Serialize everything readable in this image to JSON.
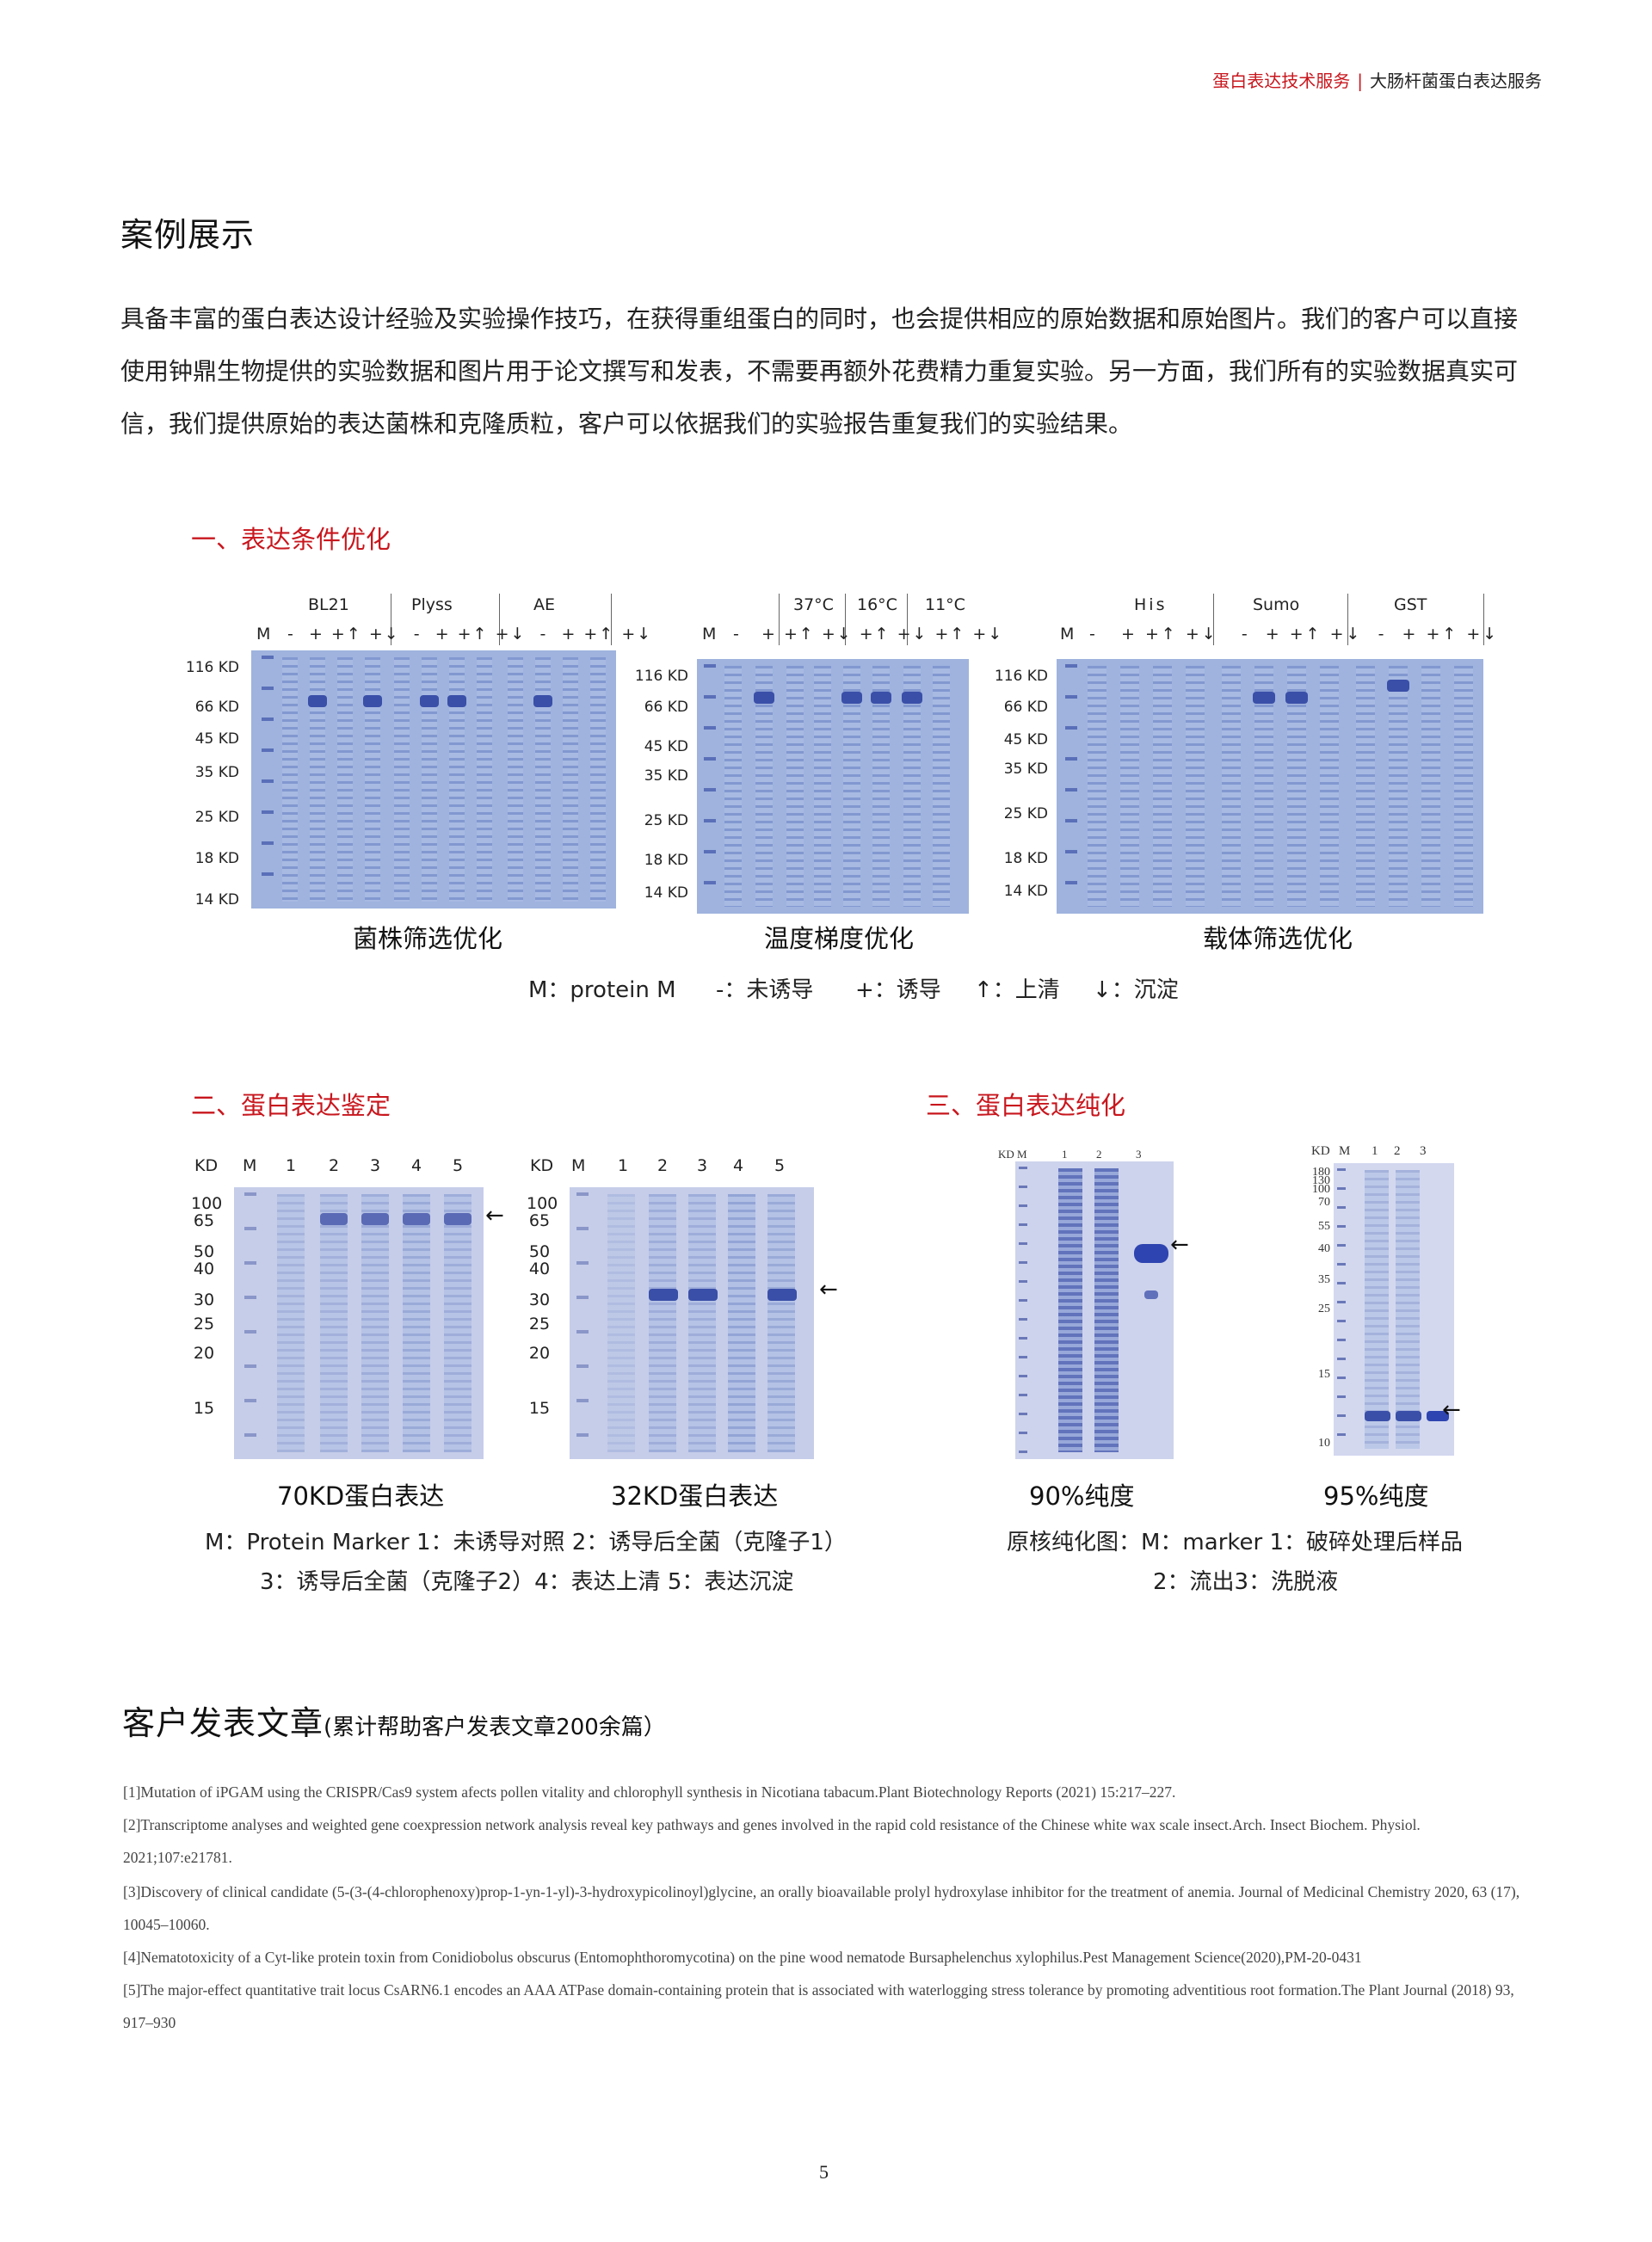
{
  "header": {
    "left": "蛋白表达技术服务",
    "separator": "|",
    "right": "大肠杆菌蛋白表达服务"
  },
  "cases": {
    "title": "案例展示",
    "intro": "具备丰富的蛋白表达设计经验及实验操作技巧，在获得重组蛋白的同时，也会提供相应的原始数据和原始图片。我们的客户可以直接使用钟鼎生物提供的实验数据和图片用于论文撰写和发表，不需要再额外花费精力重复实验。另一方面，我们所有的实验数据真实可信，我们提供原始的表达菌株和克隆质粒，客户可以依据我们的实验报告重复我们的实验结果。"
  },
  "section1": {
    "title": "一、表达条件优化",
    "gel1": {
      "groups": [
        "BL21",
        "Plyss",
        "AE"
      ],
      "marker": "M",
      "lanes": [
        "-",
        "+",
        "+↑",
        "+↓",
        "-",
        "+",
        "+↑",
        "+↓",
        "-",
        "+",
        "+↑",
        "+↓"
      ],
      "kd": [
        "116 KD",
        "66 KD",
        "45 KD",
        "35 KD",
        "25 KD",
        "18 KD",
        "14 KD"
      ],
      "caption": "菌株筛选优化"
    },
    "gel2": {
      "groups": [
        "37°C",
        "16°C",
        "11°C"
      ],
      "marker": "M",
      "lanes": [
        "-",
        "+",
        "+↑",
        "+↓",
        "+↑",
        "+↓",
        "+↑",
        "+↓"
      ],
      "kd": [
        "116 KD",
        "66 KD",
        "45 KD",
        "35 KD",
        "25 KD",
        "18 KD",
        "14 KD"
      ],
      "caption": "温度梯度优化"
    },
    "gel3": {
      "groups": [
        "His",
        "Sumo",
        "GST"
      ],
      "marker": "M",
      "lanes": [
        "-",
        "+",
        "+↑",
        "+↓",
        "-",
        "+",
        "+↑",
        "+↓",
        "-",
        "+",
        "+↑",
        "+↓"
      ],
      "kd": [
        "116 KD",
        "66 KD",
        "45 KD",
        "35 KD",
        "25 KD",
        "18 KD",
        "14 KD"
      ],
      "caption": "载体筛选优化"
    },
    "legend": [
      "M：protein M",
      "-：未诱导",
      "+：诱导",
      "↑：上清",
      "↓：沉淀"
    ]
  },
  "section2": {
    "title": "二、蛋白表达鉴定",
    "header_labels": [
      "KD",
      "M",
      "1",
      "2",
      "3",
      "4",
      "5"
    ],
    "kd": [
      "100",
      "65",
      "50",
      "40",
      "30",
      "25",
      "20",
      "15"
    ],
    "arrow": "←",
    "caption1": "70KD蛋白表达",
    "caption2": "32KD蛋白表达",
    "legend1": "M：Protein Marker  1：未诱导对照  2：诱导后全菌（克隆子1）",
    "legend2": "3：诱导后全菌（克隆子2）4：表达上清  5：表达沉淀"
  },
  "section3": {
    "title": "三、蛋白表达纯化",
    "header_labels": [
      "KD",
      "M",
      "1",
      "2",
      "3"
    ],
    "kd": [
      "180",
      "130",
      "100",
      "70",
      "55",
      "40",
      "35",
      "25",
      "15",
      "10"
    ],
    "arrow": "←",
    "caption1": "90%纯度",
    "caption2": "95%纯度",
    "legend1": "原核纯化图：M：marker 1：破碎处理后样品",
    "legend2": "2：流出3：洗脱液"
  },
  "publications": {
    "title": "客户发表文章",
    "subtitle": "(累计帮助客户发表文章200余篇）",
    "refs": [
      "[1]Mutation of iPGAM using the CRISPR/Cas9 system afects pollen vitality and chlorophyll synthesis in Nicotiana tabacum.Plant Biotechnology Reports (2021) 15:217–227.",
      "[2]Transcriptome analyses and weighted gene coexpression network analysis reveal key pathways and genes involved in the rapid cold resistance of the Chinese white wax scale insect.Arch. Insect Biochem. Physiol. 2021;107:e21781.",
      "[3]Discovery of clinical candidate (5-(3-(4-chlorophenoxy)prop-1-yn-1-yl)-3-hydroxypicolinoyl)glycine, an orally bioavailable prolyl hydroxylase inhibitor for the treatment of anemia. Journal of Medicinal Chemistry 2020, 63 (17), 10045–10060.",
      "[4]Nematotoxicity of a Cyt-like protein toxin from Conidiobolus obscurus (Entomophthoromycotina) on the pine wood nematode Bursaphelenchus xylophilus.Pest Management Science(2020),PM-20-0431",
      "[5]The major-effect quantitative trait locus CsARN6.1 encodes an AAA ATPase domain-containing protein that is associated with waterlogging stress tolerance by promoting adventitious root formation.The Plant Journal (2018) 93, 917–930"
    ]
  },
  "page_number": "5"
}
